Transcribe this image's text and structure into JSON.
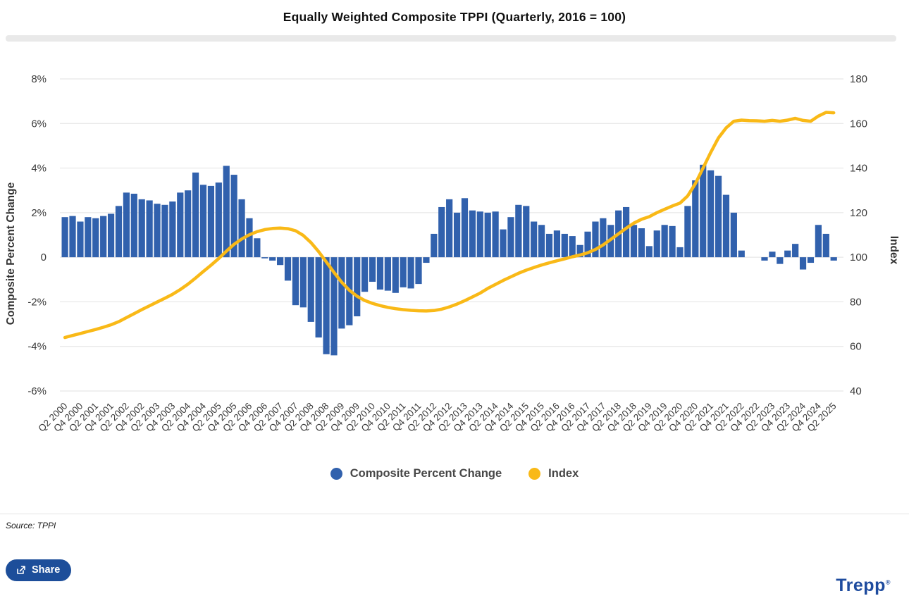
{
  "title": "Equally Weighted Composite TPPI (Quarterly, 2016 = 100)",
  "source_note": "Source: TPPI",
  "share_button": {
    "label": "Share"
  },
  "brand": {
    "logo_text": "Trepp",
    "registered_mark": "®"
  },
  "colors": {
    "bar": "#3161ad",
    "line": "#f9b917",
    "grid": "#e2e2e2",
    "tick_text": "#3a3a3a",
    "share_button_bg": "#1d4e9a",
    "brand_blue": "#1e4b9e"
  },
  "legend": {
    "items": [
      {
        "label": "Composite Percent Change",
        "color": "#3161ad"
      },
      {
        "label": "Index",
        "color": "#f9b917"
      }
    ]
  },
  "chart_data": {
    "type": "bar",
    "title": "Equally Weighted Composite TPPI (Quarterly, 2016 = 100)",
    "grid": true,
    "legend_position": "bottom",
    "left_axis": {
      "label": "Composite Percent Change",
      "min": -6,
      "max": 8,
      "ticks": [
        "8%",
        "6%",
        "4%",
        "2%",
        "0",
        "-2%",
        "-4%",
        "-6%"
      ],
      "tick_values": [
        8,
        6,
        4,
        2,
        0,
        -2,
        -4,
        -6
      ]
    },
    "right_axis": {
      "label": "Index",
      "min": 40,
      "max": 180,
      "ticks": [
        "180",
        "160",
        "140",
        "120",
        "100",
        "80",
        "60",
        "40"
      ],
      "tick_values": [
        180,
        160,
        140,
        120,
        100,
        80,
        60,
        40
      ]
    },
    "x_tick_labels": [
      "Q2 2000",
      "Q4 2000",
      "Q2 2001",
      "Q4 2001",
      "Q2 2002",
      "Q4 2002",
      "Q2 2003",
      "Q4 2003",
      "Q2 2004",
      "Q4 2004",
      "Q2 2005",
      "Q4 2005",
      "Q2 2006",
      "Q4 2006",
      "Q2 2007",
      "Q4 2007",
      "Q2 2008",
      "Q4 2008",
      "Q2 2009",
      "Q4 2009",
      "Q2 2010",
      "Q4 2010",
      "Q2 2011",
      "Q4 2011",
      "Q2 2012",
      "Q4 2012",
      "Q2 2013",
      "Q4 2013",
      "Q2 2014",
      "Q4 2014",
      "Q2 2015",
      "Q4 2015",
      "Q2 2016",
      "Q4 2016",
      "Q2 2017",
      "Q4 2017",
      "Q2 2018",
      "Q4 2018",
      "Q2 2019",
      "Q4 2019",
      "Q2 2020",
      "Q4 2020",
      "Q2 2021",
      "Q4 2021",
      "Q2 2022",
      "Q4 2022",
      "Q2 2023",
      "Q4 2023",
      "Q2 2024",
      "Q4 2024",
      "Q2 2025"
    ],
    "categories": [
      "Q2 2000",
      "Q3 2000",
      "Q4 2000",
      "Q1 2001",
      "Q2 2001",
      "Q3 2001",
      "Q4 2001",
      "Q1 2002",
      "Q2 2002",
      "Q3 2002",
      "Q4 2002",
      "Q1 2003",
      "Q2 2003",
      "Q3 2003",
      "Q4 2003",
      "Q1 2004",
      "Q2 2004",
      "Q3 2004",
      "Q4 2004",
      "Q1 2005",
      "Q2 2005",
      "Q3 2005",
      "Q4 2005",
      "Q1 2006",
      "Q2 2006",
      "Q3 2006",
      "Q4 2006",
      "Q1 2007",
      "Q2 2007",
      "Q3 2007",
      "Q4 2007",
      "Q1 2008",
      "Q2 2008",
      "Q3 2008",
      "Q4 2008",
      "Q1 2009",
      "Q2 2009",
      "Q3 2009",
      "Q4 2009",
      "Q1 2010",
      "Q2 2010",
      "Q3 2010",
      "Q4 2010",
      "Q1 2011",
      "Q2 2011",
      "Q3 2011",
      "Q4 2011",
      "Q1 2012",
      "Q2 2012",
      "Q3 2012",
      "Q4 2012",
      "Q1 2013",
      "Q2 2013",
      "Q3 2013",
      "Q4 2013",
      "Q1 2014",
      "Q2 2014",
      "Q3 2014",
      "Q4 2014",
      "Q1 2015",
      "Q2 2015",
      "Q3 2015",
      "Q4 2015",
      "Q1 2016",
      "Q2 2016",
      "Q3 2016",
      "Q4 2016",
      "Q1 2017",
      "Q2 2017",
      "Q3 2017",
      "Q4 2017",
      "Q1 2018",
      "Q2 2018",
      "Q3 2018",
      "Q4 2018",
      "Q1 2019",
      "Q2 2019",
      "Q3 2019",
      "Q4 2019",
      "Q1 2020",
      "Q2 2020",
      "Q3 2020",
      "Q4 2020",
      "Q1 2021",
      "Q2 2021",
      "Q3 2021",
      "Q4 2021",
      "Q1 2022",
      "Q2 2022",
      "Q3 2022",
      "Q4 2022",
      "Q1 2023",
      "Q2 2023",
      "Q3 2023",
      "Q4 2023",
      "Q1 2024",
      "Q2 2024",
      "Q3 2024",
      "Q4 2024",
      "Q1 2025",
      "Q2 2025"
    ],
    "series": [
      {
        "name": "Composite Percent Change",
        "type": "bar",
        "axis": "left",
        "unit": "%",
        "color": "#3161ad",
        "values": [
          1.8,
          1.85,
          1.6,
          1.8,
          1.75,
          1.85,
          1.95,
          2.3,
          2.9,
          2.85,
          2.6,
          2.55,
          2.4,
          2.35,
          2.5,
          2.9,
          3.0,
          3.8,
          3.25,
          3.2,
          3.35,
          4.1,
          3.7,
          2.6,
          1.75,
          0.85,
          -0.05,
          -0.15,
          -0.35,
          -1.05,
          -2.15,
          -2.25,
          -2.9,
          -3.6,
          -4.35,
          -4.4,
          -3.2,
          -3.05,
          -2.65,
          -1.55,
          -1.1,
          -1.45,
          -1.5,
          -1.6,
          -1.35,
          -1.4,
          -1.2,
          -0.25,
          1.05,
          2.25,
          2.6,
          2.0,
          2.65,
          2.1,
          2.05,
          2.0,
          2.05,
          1.25,
          1.8,
          2.35,
          2.3,
          1.6,
          1.45,
          1.05,
          1.2,
          1.05,
          0.95,
          0.55,
          1.15,
          1.6,
          1.75,
          1.45,
          2.1,
          2.25,
          1.45,
          1.3,
          0.5,
          1.2,
          1.45,
          1.4,
          0.45,
          2.3,
          3.45,
          4.15,
          3.9,
          3.65,
          2.8,
          2.0,
          0.3,
          0.0,
          0.0,
          -0.15,
          0.25,
          -0.3,
          0.3,
          0.6,
          -0.55,
          -0.25,
          1.45,
          1.05,
          -0.15
        ]
      },
      {
        "name": "Index",
        "type": "line",
        "axis": "right",
        "color": "#f9b917",
        "values": [
          64.0,
          64.9,
          65.8,
          66.7,
          67.6,
          68.6,
          69.7,
          71.1,
          72.9,
          74.7,
          76.5,
          78.2,
          79.9,
          81.6,
          83.4,
          85.5,
          87.9,
          90.7,
          93.6,
          96.4,
          99.4,
          102.7,
          105.8,
          108.2,
          110.1,
          111.5,
          112.4,
          112.9,
          113.1,
          112.8,
          111.9,
          109.8,
          106.6,
          102.5,
          97.9,
          93.2,
          88.8,
          85.2,
          82.5,
          80.6,
          79.3,
          78.3,
          77.5,
          76.9,
          76.5,
          76.2,
          76.0,
          75.9,
          76.1,
          76.7,
          77.7,
          79.0,
          80.5,
          82.2,
          83.9,
          86.0,
          87.8,
          89.6,
          91.2,
          92.8,
          94.2,
          95.4,
          96.5,
          97.5,
          98.4,
          99.3,
          100.2,
          101.0,
          102.0,
          103.5,
          105.5,
          108.0,
          110.5,
          113.0,
          115.3,
          117.0,
          118.2,
          120.0,
          121.5,
          123.0,
          124.3,
          127.5,
          133.0,
          140.0,
          147.0,
          153.5,
          158.0,
          161.0,
          161.5,
          161.3,
          161.2,
          161.0,
          161.4,
          161.0,
          161.5,
          162.3,
          161.4,
          161.0,
          163.3,
          165.0,
          164.8
        ]
      }
    ]
  }
}
